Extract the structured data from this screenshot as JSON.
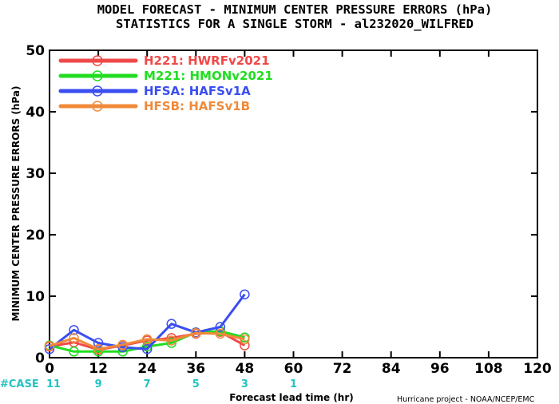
{
  "chart_data": {
    "type": "line",
    "title": "MODEL FORECAST - MINIMUM CENTER PRESSURE ERRORS (hPa)",
    "subtitle": "STATISTICS FOR A SINGLE STORM - al232020_WILFRED",
    "xlabel": "Forecast lead time (hr)",
    "ylabel": "MINIMUM CENTER PRESSURE ERRORS (hPa)",
    "xlim": [
      0,
      120
    ],
    "ylim": [
      0,
      50
    ],
    "xticks": [
      0,
      12,
      24,
      36,
      48,
      60,
      72,
      84,
      96,
      108,
      120
    ],
    "yticks": [
      0,
      10,
      20,
      30,
      40,
      50
    ],
    "grid": false,
    "legend_position": "top-left",
    "series": [
      {
        "name": "H221: HWRFv2021",
        "color": "#f04848",
        "x": [
          0,
          6,
          12,
          18,
          24,
          30,
          36,
          42,
          48
        ],
        "y": [
          1.8,
          2.5,
          1.3,
          2.0,
          2.8,
          3.2,
          3.9,
          4.2,
          2.0
        ]
      },
      {
        "name": "M221: HMONv2021",
        "color": "#22dd22",
        "x": [
          0,
          6,
          12,
          18,
          24,
          30,
          36,
          42,
          48
        ],
        "y": [
          2.0,
          1.0,
          1.0,
          1.0,
          1.8,
          2.4,
          4.1,
          4.3,
          3.3
        ]
      },
      {
        "name": "HFSA: HAFSv1A",
        "color": "#3a4ef0",
        "x": [
          0,
          6,
          12,
          18,
          24,
          30,
          36,
          42,
          48
        ],
        "y": [
          1.4,
          4.5,
          2.4,
          1.7,
          1.4,
          5.5,
          4.1,
          5.0,
          10.3
        ]
      },
      {
        "name": "HFSB: HAFSv1B",
        "color": "#f08a3a",
        "x": [
          0,
          6,
          12,
          18,
          24,
          30,
          36,
          42,
          48
        ],
        "y": [
          1.9,
          3.2,
          1.4,
          2.1,
          3.0,
          2.8,
          4.0,
          3.9,
          3.0
        ]
      }
    ],
    "cases": {
      "label": "#CASE",
      "x": [
        0,
        12,
        24,
        36,
        48,
        60
      ],
      "values": [
        "11",
        "9",
        "7",
        "5",
        "3",
        "1"
      ]
    },
    "credit": "Hurricane project - NOAA/NCEP/EMC"
  }
}
